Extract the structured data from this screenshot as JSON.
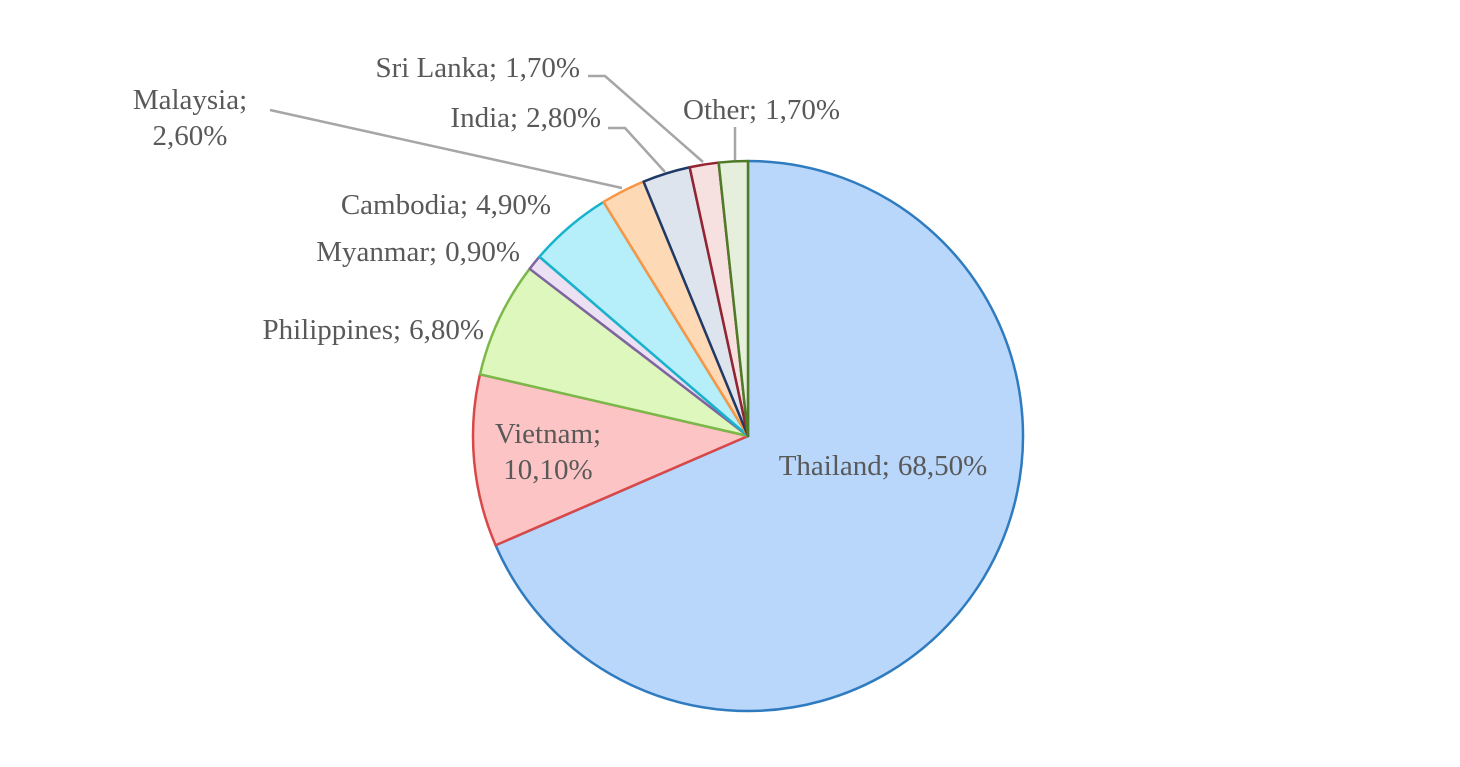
{
  "chart_data": {
    "type": "pie",
    "categories": [
      "Thailand;",
      "Vietnam;",
      "Philippines;",
      "Myanmar;",
      "Cambodia;",
      "Malaysia;",
      "India;",
      "Sri Lanka;",
      "Other;"
    ],
    "values": [
      68.5,
      10.1,
      6.8,
      0.9,
      4.9,
      2.6,
      2.8,
      1.7,
      1.7
    ],
    "value_labels": [
      "68,50%",
      "10,10%",
      "6,80%",
      "0,90%",
      "4,90%",
      "2,60%",
      "2,80%",
      "1,70%",
      "1,70%"
    ],
    "colors": [
      "#b9d6fb",
      "#fcc4c4",
      "#def7bd",
      "#ebe1f3",
      "#b6eef9",
      "#fdd9b6",
      "#dde4ee",
      "#f6e0e0",
      "#e5efdc"
    ],
    "edge_colors": [
      "#2e7bbf",
      "#d94848",
      "#7bb84a",
      "#8064a2",
      "#17b3cc",
      "#f79646",
      "#1f3a66",
      "#952431",
      "#4f7a28"
    ]
  }
}
